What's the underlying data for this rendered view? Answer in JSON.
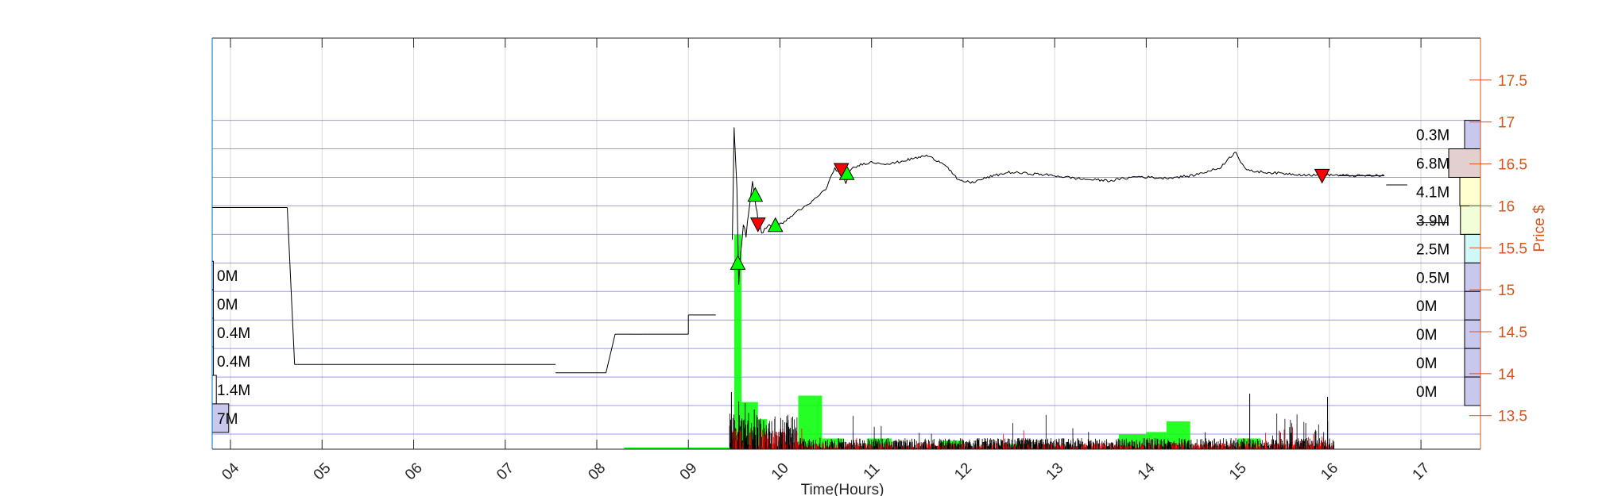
{
  "chart_data": {
    "type": "line",
    "xlabel": "Time(Hours)",
    "ylabel": "Price $",
    "x_ticks": [
      "04",
      "05",
      "06",
      "07",
      "08",
      "09",
      "10",
      "11",
      "12",
      "13",
      "14",
      "15",
      "16",
      "17"
    ],
    "y_ticks": [
      13.5,
      14,
      14.5,
      15,
      15.5,
      16,
      16.5,
      17,
      17.5
    ],
    "x_range": [
      3.8,
      17.65
    ],
    "y_range": [
      13.1,
      18.0
    ],
    "grid": "on",
    "price_series": {
      "name": "",
      "x": [
        9.48,
        9.5,
        9.51,
        9.53,
        9.55,
        9.57,
        9.6,
        9.63,
        9.66,
        9.7,
        9.72,
        9.74,
        9.76,
        9.8,
        9.85,
        9.9,
        9.95,
        10.0,
        10.1,
        10.2,
        10.3,
        10.4,
        10.5,
        10.6,
        10.68,
        10.72,
        10.76,
        10.8,
        10.9,
        11.0,
        11.2,
        11.4,
        11.6,
        11.8,
        11.95,
        12.1,
        12.3,
        12.5,
        12.8,
        13.0,
        13.3,
        13.6,
        13.9,
        14.2,
        14.5,
        14.8,
        14.98,
        15.02,
        15.1,
        15.3,
        15.6,
        15.9,
        16.0,
        16.2,
        16.6
      ],
      "y": [
        15.6,
        16.9,
        16.7,
        16.2,
        15.1,
        15.4,
        15.8,
        15.65,
        15.9,
        16.3,
        16.1,
        16.0,
        15.85,
        15.7,
        15.72,
        15.75,
        15.8,
        15.78,
        15.85,
        15.95,
        16.0,
        16.1,
        16.2,
        16.45,
        16.35,
        16.28,
        16.4,
        16.45,
        16.5,
        16.52,
        16.5,
        16.55,
        16.6,
        16.5,
        16.3,
        16.28,
        16.35,
        16.4,
        16.38,
        16.36,
        16.32,
        16.3,
        16.35,
        16.33,
        16.36,
        16.45,
        16.65,
        16.55,
        16.42,
        16.4,
        16.38,
        16.36,
        16.37,
        16.36,
        16.36
      ]
    },
    "premarket_segments": [
      {
        "x": [
          3.8,
          4.62
        ],
        "y": [
          15.98,
          15.98
        ]
      },
      {
        "x": [
          4.7,
          7.55
        ],
        "y": [
          14.11,
          14.11
        ]
      },
      {
        "x": [
          7.55,
          8.1
        ],
        "y": [
          14.01,
          14.01
        ]
      },
      {
        "x": [
          8.2,
          8.4
        ],
        "y": [
          14.47,
          14.47
        ]
      },
      {
        "x": [
          8.5,
          9.0
        ],
        "y": [
          14.47,
          14.47
        ]
      },
      {
        "x": [
          9.0,
          9.3
        ],
        "y": [
          14.7,
          14.7
        ]
      }
    ],
    "afterhours_segments": [
      {
        "x": [
          16.1,
          16.6
        ],
        "y": [
          16.36,
          16.36
        ]
      },
      {
        "x": [
          16.62,
          16.85
        ],
        "y": [
          16.25,
          16.25
        ]
      },
      {
        "x": [
          16.95,
          17.3
        ],
        "y": [
          15.8,
          15.8
        ]
      }
    ],
    "buy_markers": {
      "x": [
        9.54,
        9.73,
        9.95,
        10.73
      ],
      "y": [
        15.32,
        16.13,
        15.77,
        16.39
      ]
    },
    "sell_markers": {
      "x": [
        9.76,
        10.67,
        15.92
      ],
      "y": [
        15.78,
        16.43,
        16.36
      ]
    },
    "volume_bars": [
      {
        "x": [
          9.5,
          9.58
        ],
        "height": 1.0
      },
      {
        "x": [
          9.58,
          9.66
        ],
        "height": 0.22
      },
      {
        "x": [
          9.66,
          9.76
        ],
        "height": 0.22
      },
      {
        "x": [
          9.76,
          9.86
        ],
        "height": 0.14
      },
      {
        "x": [
          10.2,
          10.46
        ],
        "height": 0.25
      },
      {
        "x": [
          10.46,
          10.7
        ],
        "height": 0.05
      },
      {
        "x": [
          10.95,
          11.22
        ],
        "height": 0.05
      },
      {
        "x": [
          11.75,
          12.0
        ],
        "height": 0.04
      },
      {
        "x": [
          12.45,
          12.7
        ],
        "height": 0.025
      },
      {
        "x": [
          13.7,
          14.0
        ],
        "height": 0.07
      },
      {
        "x": [
          14.0,
          14.22
        ],
        "height": 0.08
      },
      {
        "x": [
          14.22,
          14.48
        ],
        "height": 0.13
      },
      {
        "x": [
          15.0,
          15.25
        ],
        "height": 0.05
      }
    ],
    "left_volume_profile": {
      "labels": [
        "0M",
        "0M",
        "0.4M",
        "0.4M",
        "1.4M",
        "7M"
      ],
      "price_bands": [
        [
          15.0,
          15.34
        ],
        [
          14.66,
          15.0
        ],
        [
          14.32,
          14.66
        ],
        [
          13.98,
          14.32
        ],
        [
          13.64,
          13.98
        ],
        [
          13.3,
          13.64
        ]
      ],
      "fractions": [
        0,
        0,
        0.003,
        0.003,
        0.01,
        0.04
      ],
      "colors": [
        "#ffffff",
        "#ffffff",
        "#ffffff",
        "#ffffff",
        "#ffffff",
        "#c8c8ee"
      ]
    },
    "right_volume_profile": {
      "labels": [
        "0.3M",
        "6.8M",
        "4.1M",
        "3.9M",
        "2.5M",
        "0.5M",
        "0M",
        "0M",
        "0M",
        "0M"
      ],
      "price_bands": [
        [
          16.68,
          17.02
        ],
        [
          16.34,
          16.68
        ],
        [
          16.0,
          16.34
        ],
        [
          15.66,
          16.0
        ],
        [
          15.32,
          15.66
        ],
        [
          14.98,
          15.32
        ],
        [
          14.64,
          14.98
        ],
        [
          14.3,
          14.64
        ],
        [
          13.96,
          14.3
        ],
        [
          13.62,
          13.96
        ]
      ],
      "fractions": [
        0.5,
        1.0,
        0.65,
        0.63,
        0.5,
        0.5,
        0.5,
        0.5,
        0.5,
        0.5
      ],
      "colors": [
        "#c8c8ee",
        "#e4cfcf",
        "#ffffd0",
        "#f1ffd8",
        "#d0f8f8",
        "#c8c8ee",
        "#c8c8ee",
        "#c8c8ee",
        "#c8c8ee",
        "#c8c8ee"
      ]
    },
    "colors": {
      "axis_right": "#d95319",
      "axis_left": "#0072bd",
      "grid_h": "#7777ee",
      "grid_v": "#d9d9d9",
      "buy": "#00ff00",
      "sell": "#ff0000",
      "volume": "#00ff00",
      "line": "#000000"
    }
  }
}
